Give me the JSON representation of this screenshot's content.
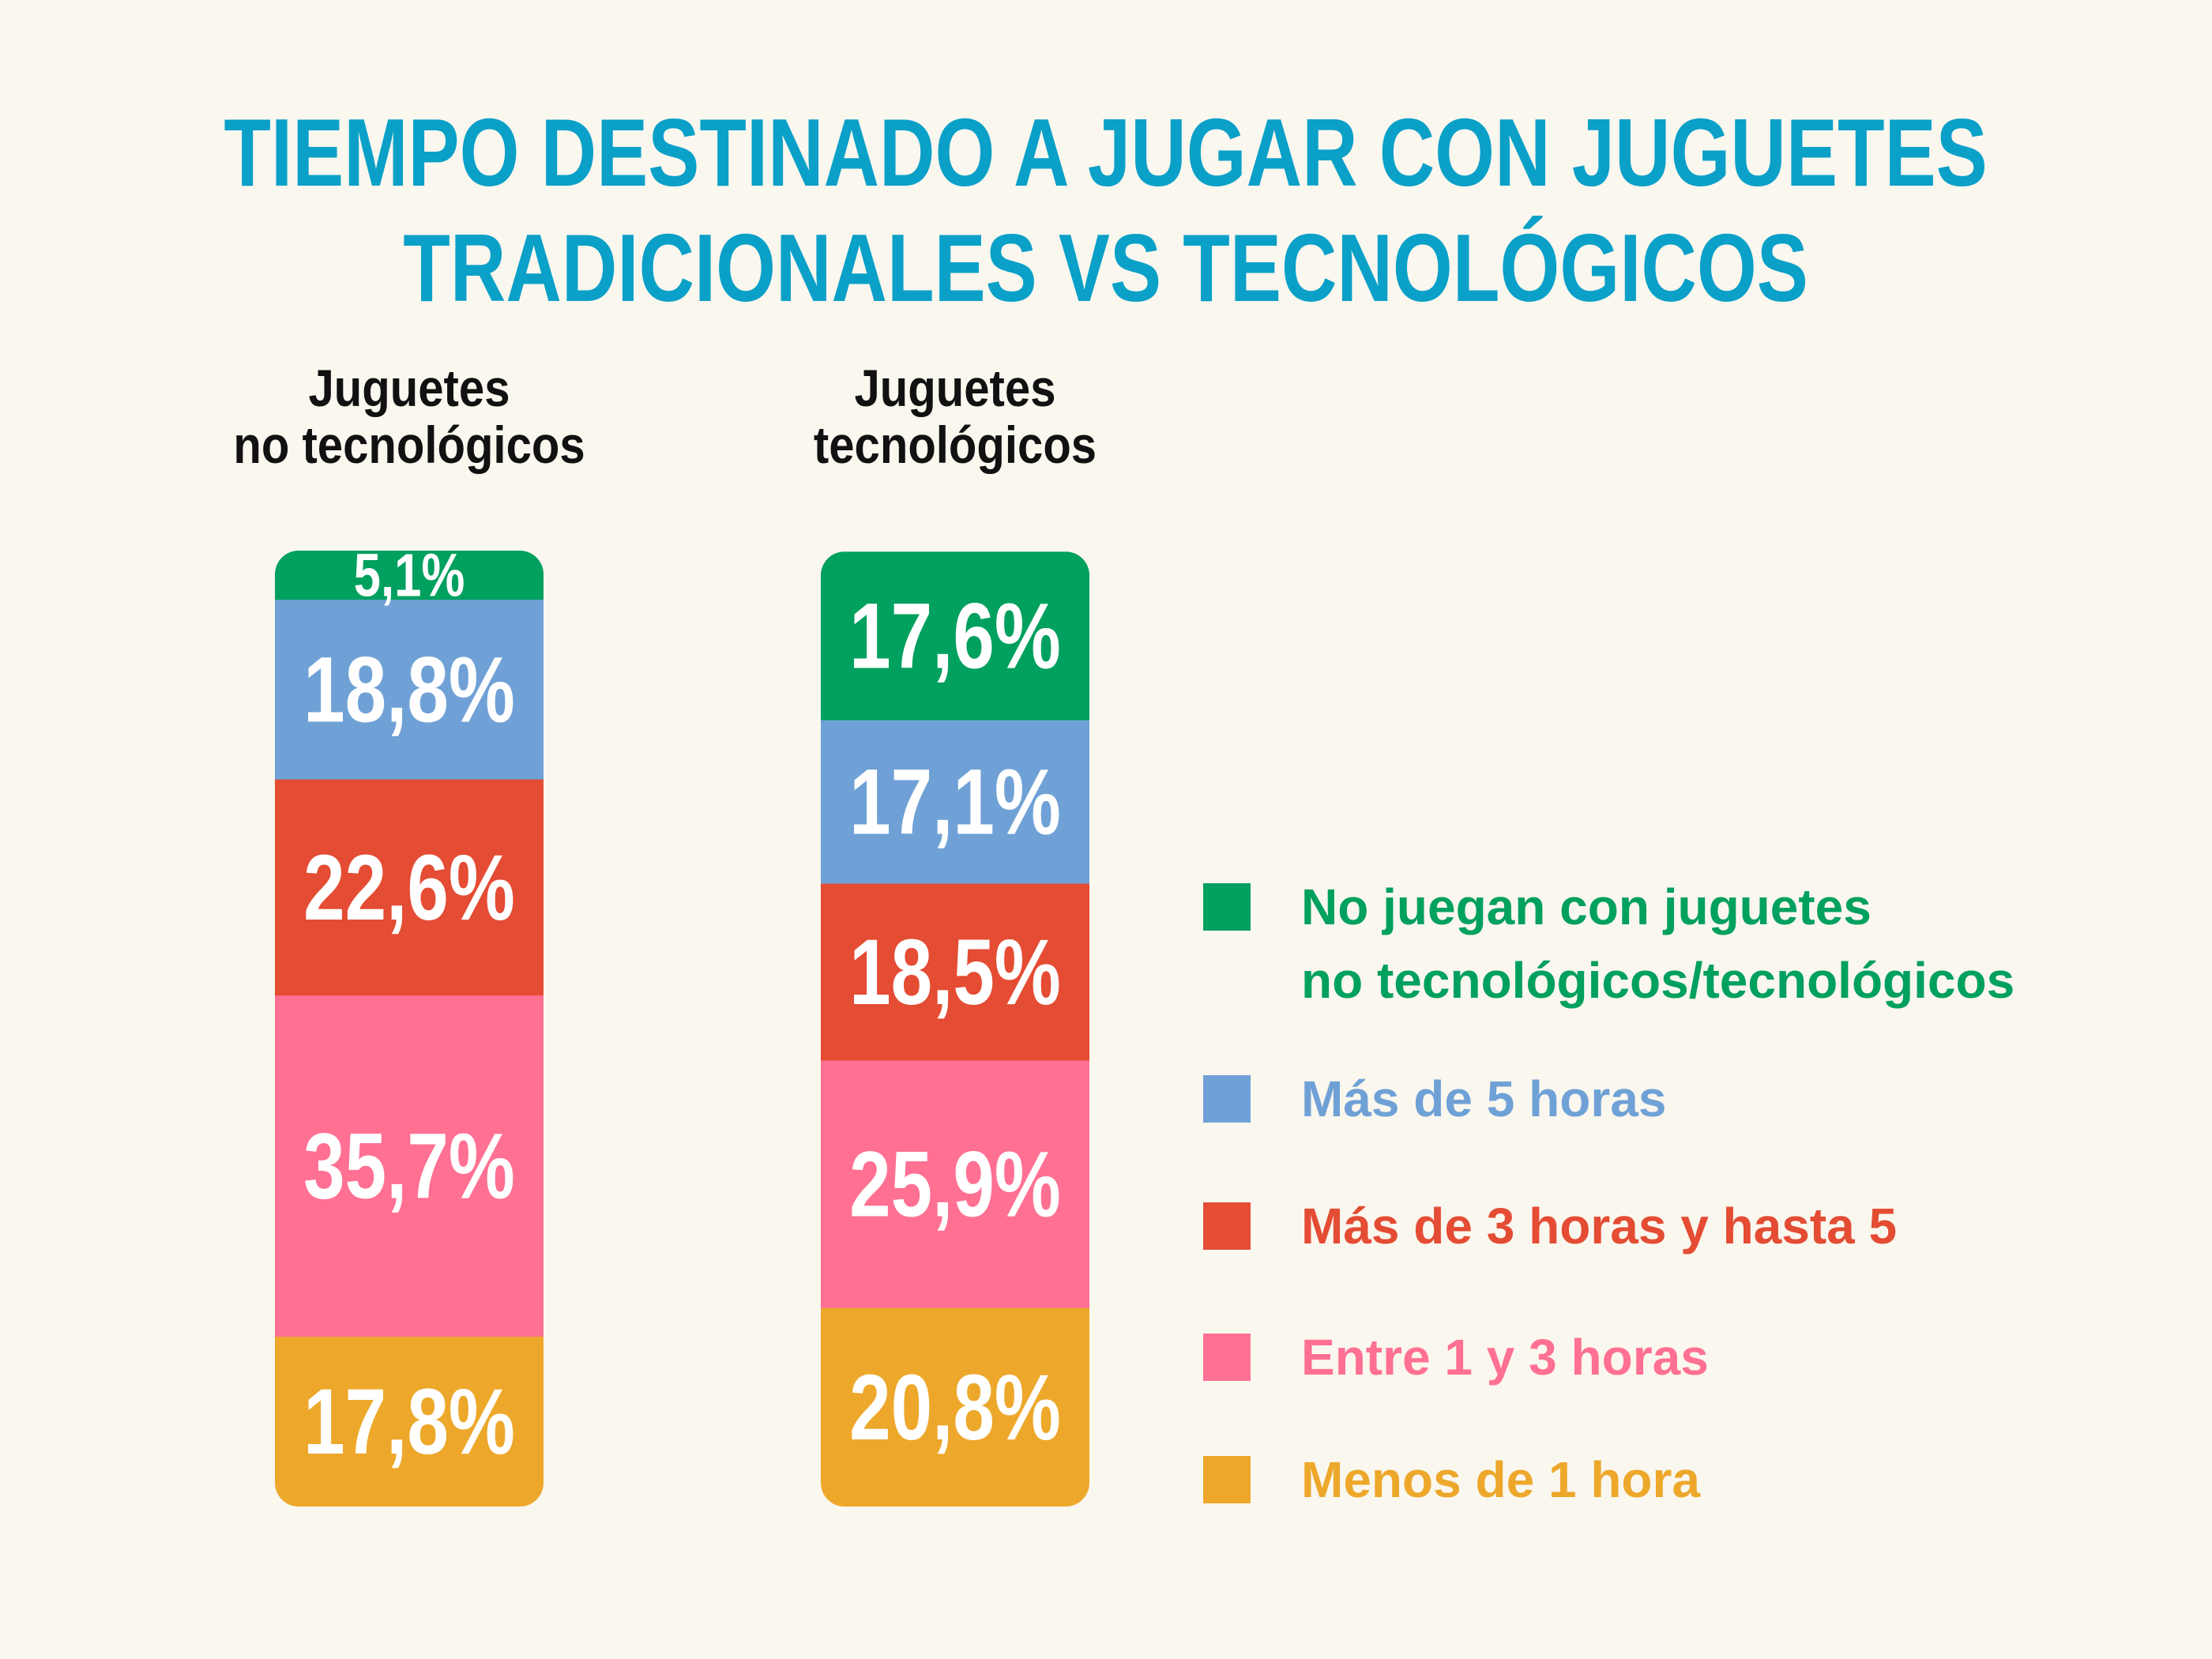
{
  "chart_data": {
    "type": "stacked_bar",
    "title": "TIEMPO DESTINADO A JUGAR CON JUGUETES\nTRADICIONALES VS TECNOLÓGICOS",
    "categories": [
      "Juguetes\nno tecnológicos",
      "Juguetes\ntecnológicos"
    ],
    "ylim": [
      0,
      100
    ],
    "series": [
      {
        "name": "No juegan con juguetes\nno tecnológicos/tecnológicos",
        "color": "#00a05e",
        "values": [
          5.1,
          17.6
        ],
        "value_labels": [
          "5,1%",
          "17,6%"
        ]
      },
      {
        "name": "Más de 5 horas",
        "color": "#6fa1d6",
        "values": [
          18.8,
          17.1
        ],
        "value_labels": [
          "18,8%",
          "17,1%"
        ]
      },
      {
        "name": "Más de 3 horas y hasta 5",
        "color": "#e44c33",
        "values": [
          22.6,
          18.5
        ],
        "value_labels": [
          "22,6%",
          "18,5%"
        ]
      },
      {
        "name": "Entre 1 y 3 horas",
        "color": "#ff7092",
        "values": [
          35.7,
          25.9
        ],
        "value_labels": [
          "35,7%",
          "25,9%"
        ]
      },
      {
        "name": "Menos de 1 hora",
        "color": "#eda82b",
        "values": [
          17.8,
          20.8
        ],
        "value_labels": [
          "17,8%",
          "20,8%"
        ]
      }
    ]
  }
}
